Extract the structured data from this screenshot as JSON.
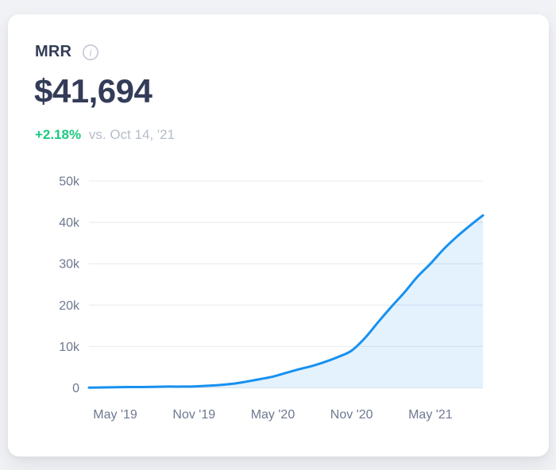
{
  "header": {
    "title": "MRR",
    "value": "$41,694",
    "change": "+2.18%",
    "compare_label": "vs. Oct 14, '21"
  },
  "icons": {
    "info": "i"
  },
  "colors": {
    "page_bg": "#f1f2f5",
    "card_bg": "#ffffff",
    "heading_text": "#333c58",
    "accent_green": "#1dc982",
    "muted_text": "#b6bdc9",
    "axis_text": "#6e7890",
    "gridline": "#e6e8ed",
    "line_blue": "#1791f0",
    "area_fill_opacity": 0.12
  },
  "chart_data": {
    "type": "area",
    "title": "MRR over time",
    "x": [
      "Mar '19",
      "Apr '19",
      "May '19",
      "Jun '19",
      "Jul '19",
      "Aug '19",
      "Sep '19",
      "Oct '19",
      "Nov '19",
      "Dec '19",
      "Jan '20",
      "Feb '20",
      "Mar '20",
      "Apr '20",
      "May '20",
      "Jun '20",
      "Jul '20",
      "Aug '20",
      "Sep '20",
      "Oct '20",
      "Nov '20",
      "Dec '20",
      "Jan '21",
      "Feb '21",
      "Mar '21",
      "Apr '21",
      "May '21",
      "Jun '21",
      "Jul '21",
      "Aug '21",
      "Sep '21"
    ],
    "values": [
      50,
      100,
      150,
      200,
      200,
      250,
      300,
      300,
      350,
      500,
      700,
      1000,
      1500,
      2100,
      2700,
      3600,
      4500,
      5300,
      6300,
      7500,
      9000,
      12000,
      15800,
      19500,
      23000,
      26800,
      30000,
      33500,
      36500,
      39200,
      41694
    ],
    "xlabel": "",
    "ylabel": "",
    "ylim": [
      0,
      50000
    ],
    "y_tick_values": [
      0,
      10000,
      20000,
      30000,
      40000,
      50000
    ],
    "y_tick_labels": [
      "0",
      "10k",
      "20k",
      "30k",
      "40k",
      "50k"
    ],
    "x_tick_indices": [
      2,
      8,
      14,
      20,
      26
    ],
    "x_tick_labels": [
      "May '19",
      "Nov '19",
      "May '20",
      "Nov '20",
      "May '21"
    ],
    "grid": "horizontal",
    "legend": "none"
  }
}
